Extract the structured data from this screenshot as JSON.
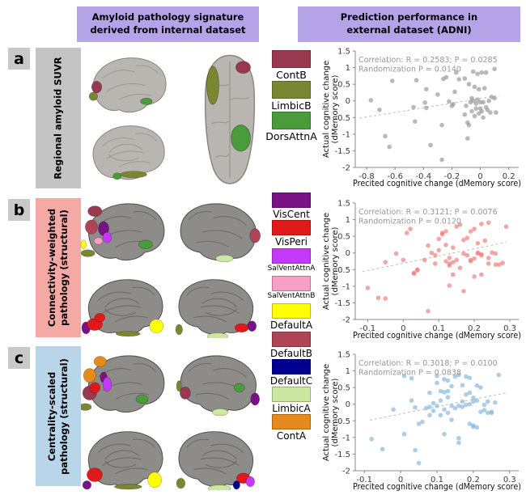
{
  "headers": {
    "left": "Amyloid pathology signature\nderived from internal dataset",
    "right": "Prediction performance in\nexternal dataset (ADNI)",
    "banner_color": "#b5a3e8"
  },
  "rows": [
    {
      "letter": "a",
      "label": "Regional amyloid SUVR",
      "color": "#c4c4c4"
    },
    {
      "letter": "b",
      "label": "Connectivity-weighted\npathology (structural)",
      "color": "#f5a9a4"
    },
    {
      "letter": "c",
      "label": "Centrality-scaled\npathology (structural)",
      "color": "#b9d5ea"
    }
  ],
  "legend_a": {
    "items": [
      {
        "label": "ContB",
        "color": "#99394f"
      },
      {
        "label": "LimbicB",
        "color": "#7a8732"
      },
      {
        "label": "DorsAttnA",
        "color": "#4a9b3c"
      }
    ]
  },
  "legend_bc": {
    "items": [
      {
        "label": "VisCent",
        "color": "#781286"
      },
      {
        "label": "VisPeri",
        "color": "#e01a1a"
      },
      {
        "label": "SalVentAttnA",
        "color": "#c43afa"
      },
      {
        "label": "SalVentAttnB",
        "color": "#f79fc4"
      },
      {
        "label": "DefaultA",
        "color": "#ffff00"
      },
      {
        "label": "DefaultB",
        "color": "#b04355"
      },
      {
        "label": "DefaultC",
        "color": "#000090"
      },
      {
        "label": "LimbicA",
        "color": "#cbe8a1"
      },
      {
        "label": "ContA",
        "color": "#e78a1d"
      }
    ]
  },
  "chart_data": [
    {
      "type": "scatter",
      "name": "scatter-row-a",
      "stats_line1": "Correlation: R = 0.2583; P = 0.0285",
      "stats_line2": "Randomization P = 0.0140",
      "xlabel": "Precited cognitive change (dMemory score)",
      "ylabel": "Actual cognitive change\n(dMemory score)",
      "xlim": [
        -0.88,
        0.27
      ],
      "ylim": [
        -2,
        1.5
      ],
      "xticks": [
        -0.8,
        -0.6,
        -0.4,
        -0.2,
        0,
        0.2
      ],
      "yticks": [
        1.5,
        1,
        0.5,
        0,
        -0.5,
        -1,
        -1.5,
        -2
      ],
      "dot_color": "#9b9b9b",
      "trend": [
        [
          -0.85,
          -0.52
        ],
        [
          0.13,
          0.16
        ]
      ],
      "points": [
        [
          -0.77,
          0.02
        ],
        [
          -0.71,
          -0.27
        ],
        [
          -0.67,
          -1.06
        ],
        [
          -0.64,
          -1.38
        ],
        [
          -0.62,
          0.6
        ],
        [
          -0.47,
          -0.19
        ],
        [
          -0.46,
          -0.62
        ],
        [
          -0.45,
          0.62
        ],
        [
          -0.39,
          -0.05
        ],
        [
          -0.38,
          -0.21
        ],
        [
          -0.38,
          0.35
        ],
        [
          -0.35,
          -1.33
        ],
        [
          -0.3,
          0.19
        ],
        [
          -0.27,
          -0.73
        ],
        [
          -0.27,
          -1.77
        ],
        [
          -0.26,
          0.66
        ],
        [
          -0.24,
          0.71
        ],
        [
          -0.22,
          -0.02
        ],
        [
          -0.2,
          -0.15
        ],
        [
          -0.19,
          -0.1
        ],
        [
          -0.18,
          0.27
        ],
        [
          -0.17,
          0.85
        ],
        [
          -0.15,
          0.65
        ],
        [
          -0.11,
          0.67
        ],
        [
          -0.11,
          -0.41
        ],
        [
          -0.1,
          -0.15
        ],
        [
          -0.09,
          -0.65
        ],
        [
          -0.09,
          -1.13
        ],
        [
          -0.08,
          -0.73
        ],
        [
          -0.08,
          0.5
        ],
        [
          -0.07,
          -0.04
        ],
        [
          -0.06,
          0.08
        ],
        [
          -0.06,
          -0.31
        ],
        [
          -0.05,
          0.88
        ],
        [
          -0.05,
          0.0
        ],
        [
          -0.04,
          -0.46
        ],
        [
          -0.04,
          0.42
        ],
        [
          -0.03,
          -0.08
        ],
        [
          -0.03,
          -0.23
        ],
        [
          -0.02,
          0.81
        ],
        [
          -0.02,
          0.04
        ],
        [
          -0.01,
          -0.38
        ],
        [
          -0.01,
          0.35
        ],
        [
          0.0,
          -0.04
        ],
        [
          0.0,
          -0.23
        ],
        [
          0.01,
          0.85
        ],
        [
          0.01,
          -0.31
        ],
        [
          0.02,
          -0.04
        ],
        [
          0.02,
          -0.5
        ],
        [
          0.03,
          0.38
        ],
        [
          0.04,
          -0.19
        ],
        [
          0.04,
          0.85
        ],
        [
          0.05,
          -0.27
        ],
        [
          0.06,
          0.0
        ],
        [
          0.07,
          -0.35
        ],
        [
          0.08,
          0.12
        ],
        [
          0.1,
          0.96
        ],
        [
          0.1,
          0.08
        ],
        [
          0.11,
          -0.35
        ]
      ]
    },
    {
      "type": "scatter",
      "name": "scatter-row-b",
      "stats_line1": "Correlation: R = 0.3121; P = 0.0076",
      "stats_line2": "Randomization P = 0.0120",
      "xlabel": "Precited cognitive change (dMemory score)",
      "ylabel": "Actual cognitive change\n(dMemory score)",
      "xlim": [
        -0.135,
        0.325
      ],
      "ylim": [
        -2,
        1.5
      ],
      "xticks": [
        -0.1,
        0,
        0.1,
        0.2,
        0.3
      ],
      "yticks": [
        1.5,
        1,
        0.5,
        0,
        -0.5,
        -1,
        -1.5,
        -2
      ],
      "dot_color": "#f0807f",
      "trend": [
        [
          -0.115,
          -0.56
        ],
        [
          0.29,
          0.32
        ]
      ],
      "points": [
        [
          -0.1,
          -1.05
        ],
        [
          -0.07,
          -1.35
        ],
        [
          -0.05,
          -1.37
        ],
        [
          -0.05,
          -0.28
        ],
        [
          -0.02,
          -0.02
        ],
        [
          0.0,
          -0.21
        ],
        [
          0.01,
          0.6
        ],
        [
          0.02,
          0.72
        ],
        [
          0.03,
          -0.62
        ],
        [
          0.03,
          -0.6
        ],
        [
          0.04,
          -0.52
        ],
        [
          0.04,
          -0.5
        ],
        [
          0.06,
          -0.21
        ],
        [
          0.07,
          -1.75
        ],
        [
          0.07,
          0.22
        ],
        [
          0.08,
          0.0
        ],
        [
          0.09,
          -0.07
        ],
        [
          0.09,
          -0.32
        ],
        [
          0.1,
          0.08
        ],
        [
          0.1,
          0.42
        ],
        [
          0.11,
          0.56
        ],
        [
          0.11,
          0.6
        ],
        [
          0.12,
          0.65
        ],
        [
          0.12,
          0.24
        ],
        [
          0.12,
          -0.25
        ],
        [
          0.13,
          -0.32
        ],
        [
          0.13,
          -0.15
        ],
        [
          0.13,
          -0.98
        ],
        [
          0.13,
          -0.38
        ],
        [
          0.14,
          -0.28
        ],
        [
          0.14,
          -0.65
        ],
        [
          0.14,
          0.16
        ],
        [
          0.15,
          0.79
        ],
        [
          0.15,
          -0.21
        ],
        [
          0.16,
          -0.45
        ],
        [
          0.16,
          0.85
        ],
        [
          0.17,
          0.39
        ],
        [
          0.17,
          -1.15
        ],
        [
          0.17,
          -0.02
        ],
        [
          0.18,
          0.45
        ],
        [
          0.18,
          -0.07
        ],
        [
          0.19,
          0.65
        ],
        [
          0.19,
          -0.21
        ],
        [
          0.19,
          -0.25
        ],
        [
          0.2,
          0.72
        ],
        [
          0.2,
          -0.17
        ],
        [
          0.2,
          -0.71
        ],
        [
          0.21,
          0.01
        ],
        [
          0.21,
          0.29
        ],
        [
          0.21,
          -0.02
        ],
        [
          0.22,
          -0.07
        ],
        [
          0.22,
          -0.65
        ],
        [
          0.22,
          0.87
        ],
        [
          0.22,
          -0.04
        ],
        [
          0.23,
          0.37
        ],
        [
          0.24,
          -0.15
        ],
        [
          0.24,
          0.91
        ],
        [
          0.24,
          -0.32
        ],
        [
          0.25,
          0.01
        ],
        [
          0.26,
          -0.35
        ],
        [
          0.26,
          -0.02
        ],
        [
          0.27,
          -0.35
        ],
        [
          0.28,
          -0.3
        ],
        [
          0.29,
          0.79
        ]
      ]
    },
    {
      "type": "scatter",
      "name": "scatter-row-c",
      "stats_line1": "Correlation: R = 0.3018; P = 0.0100",
      "stats_line2": "Randomization P = 0.0838",
      "xlabel": "Precited cognitive change (dMemory score)",
      "ylabel": "Actual cognitive change\n(dMemory score)",
      "xlim": [
        -0.125,
        0.325
      ],
      "ylim": [
        -2,
        1.5
      ],
      "xticks": [
        -0.1,
        0,
        0.1,
        0.2,
        0.3
      ],
      "yticks": [
        1.5,
        1,
        0.5,
        0,
        -0.5,
        -1,
        -1.5,
        -2
      ],
      "dot_color": "#8cb8dc",
      "trend": [
        [
          -0.085,
          -0.48
        ],
        [
          0.29,
          0.34
        ]
      ],
      "points": [
        [
          -0.08,
          -1.05
        ],
        [
          -0.05,
          -1.35
        ],
        [
          -0.02,
          -0.16
        ],
        [
          0.01,
          0.85
        ],
        [
          0.01,
          -0.9
        ],
        [
          0.03,
          0.78
        ],
        [
          0.03,
          0.11
        ],
        [
          0.04,
          -1.38
        ],
        [
          0.04,
          -0.1
        ],
        [
          0.05,
          -0.59
        ],
        [
          0.05,
          -1.77
        ],
        [
          0.06,
          -0.53
        ],
        [
          0.07,
          -0.12
        ],
        [
          0.08,
          0.34
        ],
        [
          0.08,
          -0.08
        ],
        [
          0.08,
          -0.33
        ],
        [
          0.09,
          0.03
        ],
        [
          0.09,
          -0.2
        ],
        [
          0.1,
          0.64
        ],
        [
          0.1,
          -0.05
        ],
        [
          0.1,
          0.85
        ],
        [
          0.11,
          0.39
        ],
        [
          0.11,
          0.11
        ],
        [
          0.11,
          -0.33
        ],
        [
          0.12,
          0.75
        ],
        [
          0.12,
          0.36
        ],
        [
          0.12,
          -0.16
        ],
        [
          0.12,
          -0.9
        ],
        [
          0.13,
          0.39
        ],
        [
          0.13,
          -0.26
        ],
        [
          0.13,
          0.71
        ],
        [
          0.13,
          0.21
        ],
        [
          0.14,
          -0.47
        ],
        [
          0.14,
          0.54
        ],
        [
          0.14,
          -0.05
        ],
        [
          0.15,
          0.83
        ],
        [
          0.15,
          -0.12
        ],
        [
          0.16,
          -1.02
        ],
        [
          0.16,
          -0.05
        ],
        [
          0.16,
          0.88
        ],
        [
          0.16,
          -1.16
        ],
        [
          0.17,
          0.57
        ],
        [
          0.17,
          -0.08
        ],
        [
          0.17,
          0.08
        ],
        [
          0.18,
          -0.02
        ],
        [
          0.18,
          0.83
        ],
        [
          0.18,
          0.29
        ],
        [
          0.19,
          0.0
        ],
        [
          0.19,
          -0.59
        ],
        [
          0.19,
          0.79
        ],
        [
          0.19,
          0.34
        ],
        [
          0.2,
          -0.64
        ],
        [
          0.2,
          0.19
        ],
        [
          0.2,
          0.08
        ],
        [
          0.2,
          -0.68
        ],
        [
          0.21,
          0.56
        ],
        [
          0.21,
          0.11
        ],
        [
          0.21,
          -0.7
        ],
        [
          0.22,
          -0.23
        ],
        [
          0.22,
          0.5
        ],
        [
          0.23,
          -0.02
        ],
        [
          0.23,
          -0.18
        ],
        [
          0.24,
          0.08
        ],
        [
          0.24,
          -0.26
        ],
        [
          0.25,
          -0.23
        ],
        [
          0.25,
          -0.26
        ],
        [
          0.26,
          0.05
        ],
        [
          0.27,
          0.88
        ]
      ]
    }
  ]
}
